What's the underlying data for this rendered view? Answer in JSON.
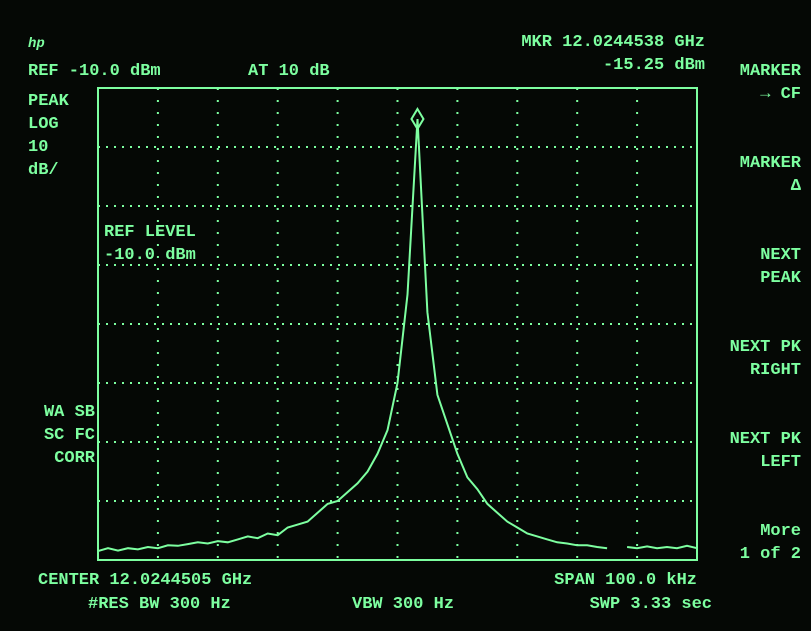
{
  "screen": {
    "logo": "hp",
    "ref": "REF -10.0 dBm",
    "atten": "AT 10 dB",
    "marker_freq": "MKR 12.0244538 GHz",
    "marker_level": "-15.25 dBm",
    "scale": [
      "PEAK",
      "LOG",
      "10",
      "dB/"
    ],
    "ref_level": [
      "REF LEVEL",
      "-10.0 dBm"
    ],
    "flags": [
      "WA SB",
      "SC FC",
      "CORR"
    ],
    "center": "CENTER 12.0244505 GHz",
    "rbw": "#RES BW 300 Hz",
    "vbw": "VBW 300 Hz",
    "span": "SPAN 100.0 kHz",
    "sweep": "SWP 3.33  sec",
    "softkeys": [
      [
        "MARKER",
        "→ CF"
      ],
      [
        "MARKER",
        "Δ"
      ],
      [
        "NEXT",
        "PEAK"
      ],
      [
        "NEXT PK",
        "RIGHT"
      ],
      [
        "NEXT PK",
        "LEFT"
      ],
      [
        "More",
        "1 of 2"
      ]
    ]
  },
  "chart_data": {
    "type": "line",
    "ylim": [
      -90,
      -10
    ],
    "yticks": [
      -90,
      -80,
      -70,
      -60,
      -50,
      -40,
      -30,
      -20,
      -10
    ],
    "grid": true,
    "series": [
      {
        "color": "#7dffa0",
        "values": [
          -88.5,
          -88,
          -88.4,
          -88,
          -88.2,
          -87.8,
          -88,
          -87.5,
          -87.6,
          -87.3,
          -87,
          -87.2,
          -86.8,
          -87,
          -86.5,
          -86,
          -86.3,
          -85.5,
          -85.8,
          -84.5,
          -84,
          -83.5,
          -82,
          -80.5,
          -80,
          -78.5,
          -77,
          -75,
          -72,
          -68,
          -60,
          -45,
          -15.25,
          -48,
          -62,
          -67,
          -72,
          -76,
          -78,
          -80.5,
          -82,
          -83.5,
          -84.5,
          -85.5,
          -86,
          -86.5,
          -87,
          -87.2,
          -87.5,
          -87.5,
          -87.8,
          -88,
          null,
          -87.8,
          -88,
          -87.7,
          -88,
          -87.8,
          -88,
          -87.6,
          -88
        ]
      }
    ]
  }
}
